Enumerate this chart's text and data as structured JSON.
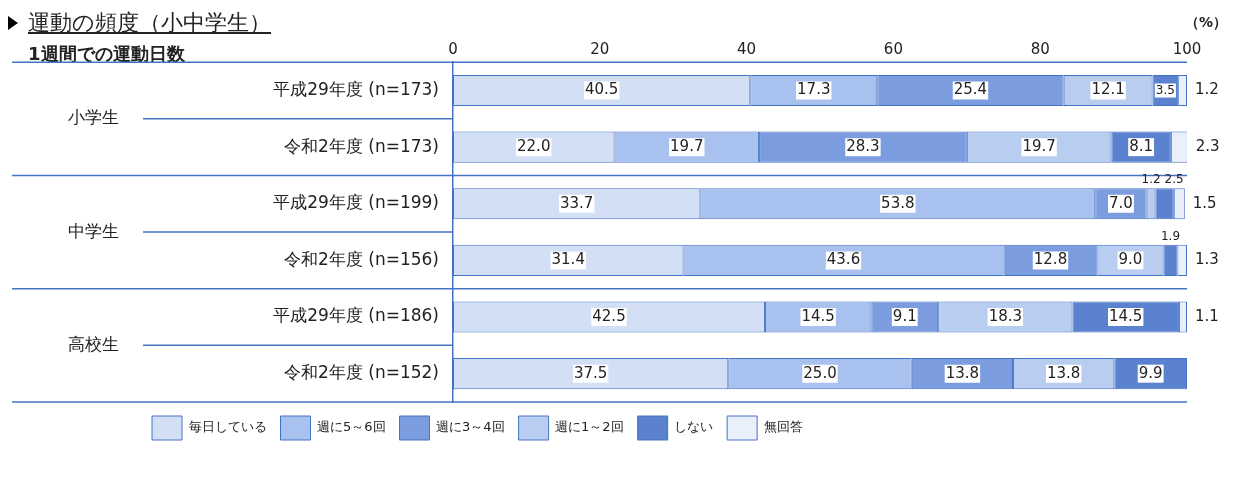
{
  "chart_data": {
    "type": "bar",
    "orientation": "horizontal",
    "stacked": true,
    "title": "運動の頻度（小中学生）",
    "subtitle": "1週間での運動日数",
    "categories": [
      "平成29年度 (n=173)",
      "令和2年度 (n=173)",
      "平成29年度 (n=199)",
      "令和2年度 (n=156)",
      "平成29年度 (n=186)",
      "令和2年度 (n=152)"
    ],
    "annotations": [
      "小学生",
      "中学生",
      "高校生",
      "（%）"
    ],
    "xlim": [
      0,
      100
    ],
    "xticks": [
      0,
      20,
      40,
      60,
      80,
      100
    ],
    "grid": false,
    "legend": "bottom left",
    "series": [
      {
        "name": "毎日している",
        "color": "#d3dff5",
        "values": [
          40.5,
          22.0,
          33.7,
          31.4,
          42.5,
          37.5
        ],
        "value_labels": [
          "40.5",
          "22.0",
          "33.7",
          "31.4",
          "42.5",
          "37.5"
        ]
      },
      {
        "name": "週に5～6回",
        "color": "#a9c1ee",
        "values": [
          17.3,
          19.7,
          53.8,
          43.6,
          14.5,
          25.0
        ],
        "value_labels": [
          "17.3",
          "19.7",
          "53.8",
          "43.6",
          "14.5",
          "25.0"
        ]
      },
      {
        "name": "週に3～4回",
        "color": "#7b9de0",
        "values": [
          25.4,
          28.3,
          7.0,
          12.8,
          9.1,
          13.8
        ],
        "value_labels": [
          "25.4",
          "28.3",
          "7.0",
          "12.8",
          "9.1",
          "13.8"
        ]
      },
      {
        "name": "週に1～2回",
        "color": "#b9cdf1",
        "values": [
          12.1,
          19.7,
          1.2,
          9.0,
          18.3,
          13.8
        ],
        "value_labels": [
          "12.1",
          "19.7",
          "1.2",
          "9.0",
          "18.3",
          "13.8"
        ]
      },
      {
        "name": "しない",
        "color": "#5b82cf",
        "values": [
          3.5,
          8.1,
          2.5,
          1.9,
          14.5,
          9.9
        ],
        "value_labels": [
          "3.5",
          "8.1",
          "2.5",
          "1.9",
          "14.5",
          "9.9"
        ]
      },
      {
        "name": "無回答",
        "color": "#eaf0fb",
        "values": [
          1.2,
          2.3,
          1.5,
          1.3,
          1.1,
          null
        ],
        "value_labels": [
          "1.2",
          "2.3",
          "1.5",
          "1.3",
          "1.1",
          null
        ]
      }
    ]
  }
}
